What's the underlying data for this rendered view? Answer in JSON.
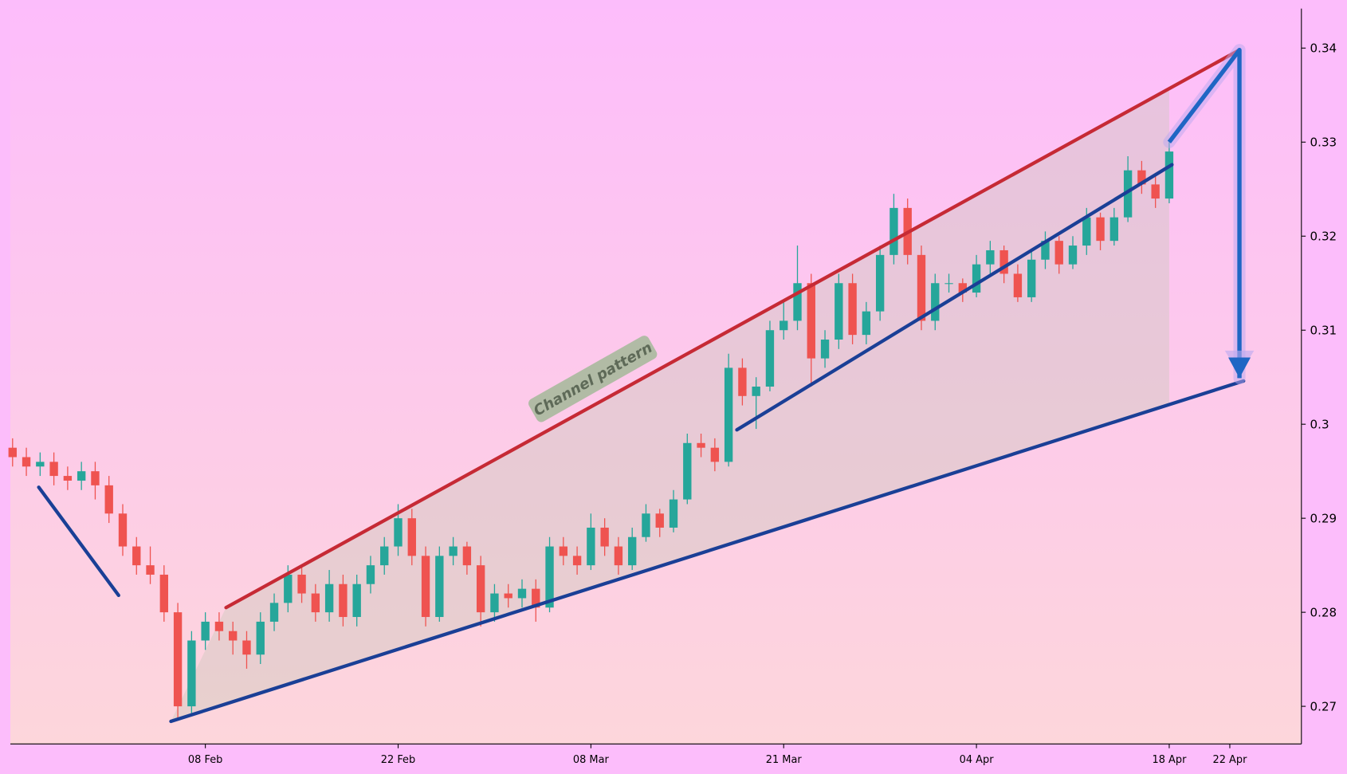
{
  "chart_data": {
    "type": "candlestick",
    "up_color": "#26a69a",
    "down_color": "#ef5350",
    "xlim": [
      -14.16,
      79.6
    ],
    "ylim": [
      0.266,
      0.3442
    ],
    "xticks": [
      {
        "value": 0,
        "label": "08 Feb"
      },
      {
        "value": 14,
        "label": "22 Feb"
      },
      {
        "value": 28,
        "label": "08 Mar"
      },
      {
        "value": 42,
        "label": "21 Mar"
      },
      {
        "value": 56,
        "label": "04 Apr"
      },
      {
        "value": 70,
        "label": "18 Apr"
      },
      {
        "value": 74.4,
        "label": "22 Apr"
      }
    ],
    "yticks": [
      0.27,
      0.28,
      0.29,
      0.3,
      0.31,
      0.32,
      0.33,
      0.34
    ],
    "x": [
      -14,
      -13,
      -12,
      -11,
      -10,
      -9,
      -8,
      -7,
      -6,
      -5,
      -4,
      -3,
      -2,
      -1,
      0,
      1,
      2,
      3,
      4,
      5,
      6,
      7,
      8,
      9,
      10,
      11,
      12,
      13,
      14,
      15,
      16,
      17,
      18,
      19,
      20,
      21,
      22,
      23,
      24,
      25,
      26,
      27,
      28,
      29,
      30,
      31,
      32,
      33,
      34,
      35,
      36,
      37,
      38,
      39,
      40,
      41,
      42,
      43,
      44,
      45,
      46,
      47,
      48,
      49,
      50,
      51,
      52,
      53,
      54,
      55,
      56,
      57,
      58,
      59,
      60,
      61,
      62,
      63,
      64,
      65,
      66,
      67,
      68,
      69,
      70
    ],
    "open": [
      0.2975,
      0.2965,
      0.2955,
      0.296,
      0.2945,
      0.294,
      0.295,
      0.2935,
      0.2905,
      0.287,
      0.285,
      0.284,
      0.28,
      0.27,
      0.277,
      0.279,
      0.278,
      0.277,
      0.2755,
      0.279,
      0.281,
      0.284,
      0.282,
      0.28,
      0.283,
      0.2795,
      0.283,
      0.285,
      0.287,
      0.29,
      0.286,
      0.2795,
      0.286,
      0.287,
      0.285,
      0.28,
      0.282,
      0.2815,
      0.2825,
      0.2805,
      0.287,
      0.286,
      0.285,
      0.289,
      0.287,
      0.285,
      0.288,
      0.2905,
      0.289,
      0.292,
      0.298,
      0.2975,
      0.296,
      0.306,
      0.303,
      0.304,
      0.31,
      0.311,
      0.315,
      0.307,
      0.309,
      0.315,
      0.3095,
      0.312,
      0.318,
      0.323,
      0.318,
      0.311,
      0.315,
      0.315,
      0.314,
      0.317,
      0.3185,
      0.316,
      0.3135,
      0.3175,
      0.3195,
      0.317,
      0.319,
      0.322,
      0.3195,
      0.322,
      0.327,
      0.3255,
      0.324
    ],
    "high": [
      0.2985,
      0.2975,
      0.297,
      0.297,
      0.2955,
      0.296,
      0.296,
      0.2945,
      0.2915,
      0.288,
      0.287,
      0.285,
      0.281,
      0.278,
      0.28,
      0.28,
      0.279,
      0.278,
      0.28,
      0.282,
      0.285,
      0.285,
      0.283,
      0.2845,
      0.284,
      0.284,
      0.286,
      0.288,
      0.2915,
      0.291,
      0.287,
      0.287,
      0.288,
      0.2875,
      0.286,
      0.283,
      0.283,
      0.2835,
      0.2835,
      0.288,
      0.288,
      0.287,
      0.2905,
      0.29,
      0.288,
      0.289,
      0.2915,
      0.291,
      0.293,
      0.299,
      0.299,
      0.2985,
      0.3075,
      0.307,
      0.305,
      0.311,
      0.313,
      0.319,
      0.316,
      0.31,
      0.316,
      0.316,
      0.313,
      0.319,
      0.3245,
      0.324,
      0.319,
      0.316,
      0.316,
      0.3155,
      0.318,
      0.3195,
      0.319,
      0.317,
      0.3185,
      0.3205,
      0.32,
      0.32,
      0.323,
      0.3225,
      0.323,
      0.3285,
      0.328,
      0.3265,
      0.33
    ],
    "low": [
      0.2955,
      0.2945,
      0.2945,
      0.2935,
      0.293,
      0.293,
      0.292,
      0.2895,
      0.286,
      0.284,
      0.283,
      0.279,
      0.2685,
      0.269,
      0.276,
      0.277,
      0.2755,
      0.274,
      0.2745,
      0.278,
      0.28,
      0.281,
      0.279,
      0.279,
      0.2785,
      0.2785,
      0.282,
      0.284,
      0.286,
      0.285,
      0.2785,
      0.279,
      0.285,
      0.284,
      0.2785,
      0.279,
      0.2805,
      0.2805,
      0.279,
      0.28,
      0.285,
      0.284,
      0.2845,
      0.286,
      0.284,
      0.2845,
      0.2875,
      0.288,
      0.2885,
      0.2915,
      0.2965,
      0.295,
      0.2955,
      0.302,
      0.2995,
      0.3035,
      0.309,
      0.31,
      0.304,
      0.306,
      0.308,
      0.3085,
      0.3085,
      0.311,
      0.317,
      0.317,
      0.31,
      0.31,
      0.314,
      0.313,
      0.3135,
      0.316,
      0.315,
      0.313,
      0.313,
      0.3165,
      0.316,
      0.3165,
      0.318,
      0.3185,
      0.319,
      0.3215,
      0.3245,
      0.323,
      0.3235
    ],
    "close": [
      0.2965,
      0.2955,
      0.296,
      0.2945,
      0.294,
      0.295,
      0.2935,
      0.2905,
      0.287,
      0.285,
      0.284,
      0.28,
      0.27,
      0.277,
      0.279,
      0.278,
      0.277,
      0.2755,
      0.279,
      0.281,
      0.284,
      0.282,
      0.28,
      0.283,
      0.2795,
      0.283,
      0.285,
      0.287,
      0.29,
      0.286,
      0.2795,
      0.286,
      0.287,
      0.285,
      0.28,
      0.282,
      0.2815,
      0.2825,
      0.2805,
      0.287,
      0.286,
      0.285,
      0.289,
      0.287,
      0.285,
      0.288,
      0.2905,
      0.289,
      0.292,
      0.298,
      0.2975,
      0.296,
      0.306,
      0.303,
      0.304,
      0.31,
      0.311,
      0.315,
      0.307,
      0.309,
      0.315,
      0.3095,
      0.312,
      0.318,
      0.323,
      0.318,
      0.311,
      0.315,
      0.315,
      0.314,
      0.317,
      0.3185,
      0.316,
      0.3135,
      0.3175,
      0.3195,
      0.317,
      0.319,
      0.322,
      0.3195,
      0.322,
      0.327,
      0.3255,
      0.324,
      0.329
    ],
    "lines": [
      {
        "color": "#c62a35",
        "x": [
          1.5,
          75.1
        ],
        "y": [
          0.2805,
          0.3398
        ]
      },
      {
        "color": "#1a3f96",
        "x": [
          -2.5,
          75.4
        ],
        "y": [
          0.2684,
          0.3046
        ]
      },
      {
        "color": "#1a3f96",
        "x": [
          -12.1,
          -6.3
        ],
        "y": [
          0.2933,
          0.2818
        ]
      },
      {
        "color": "#1a3f96",
        "x": [
          38.6,
          70.2
        ],
        "y": [
          0.2994,
          0.3276
        ]
      }
    ],
    "arrow": {
      "color": "#1f66c4",
      "x": [
        70,
        75.1,
        75.1
      ],
      "y": [
        0.33,
        0.3398,
        0.3049
      ]
    },
    "annotation": {
      "text": "Channel pattern"
    }
  }
}
